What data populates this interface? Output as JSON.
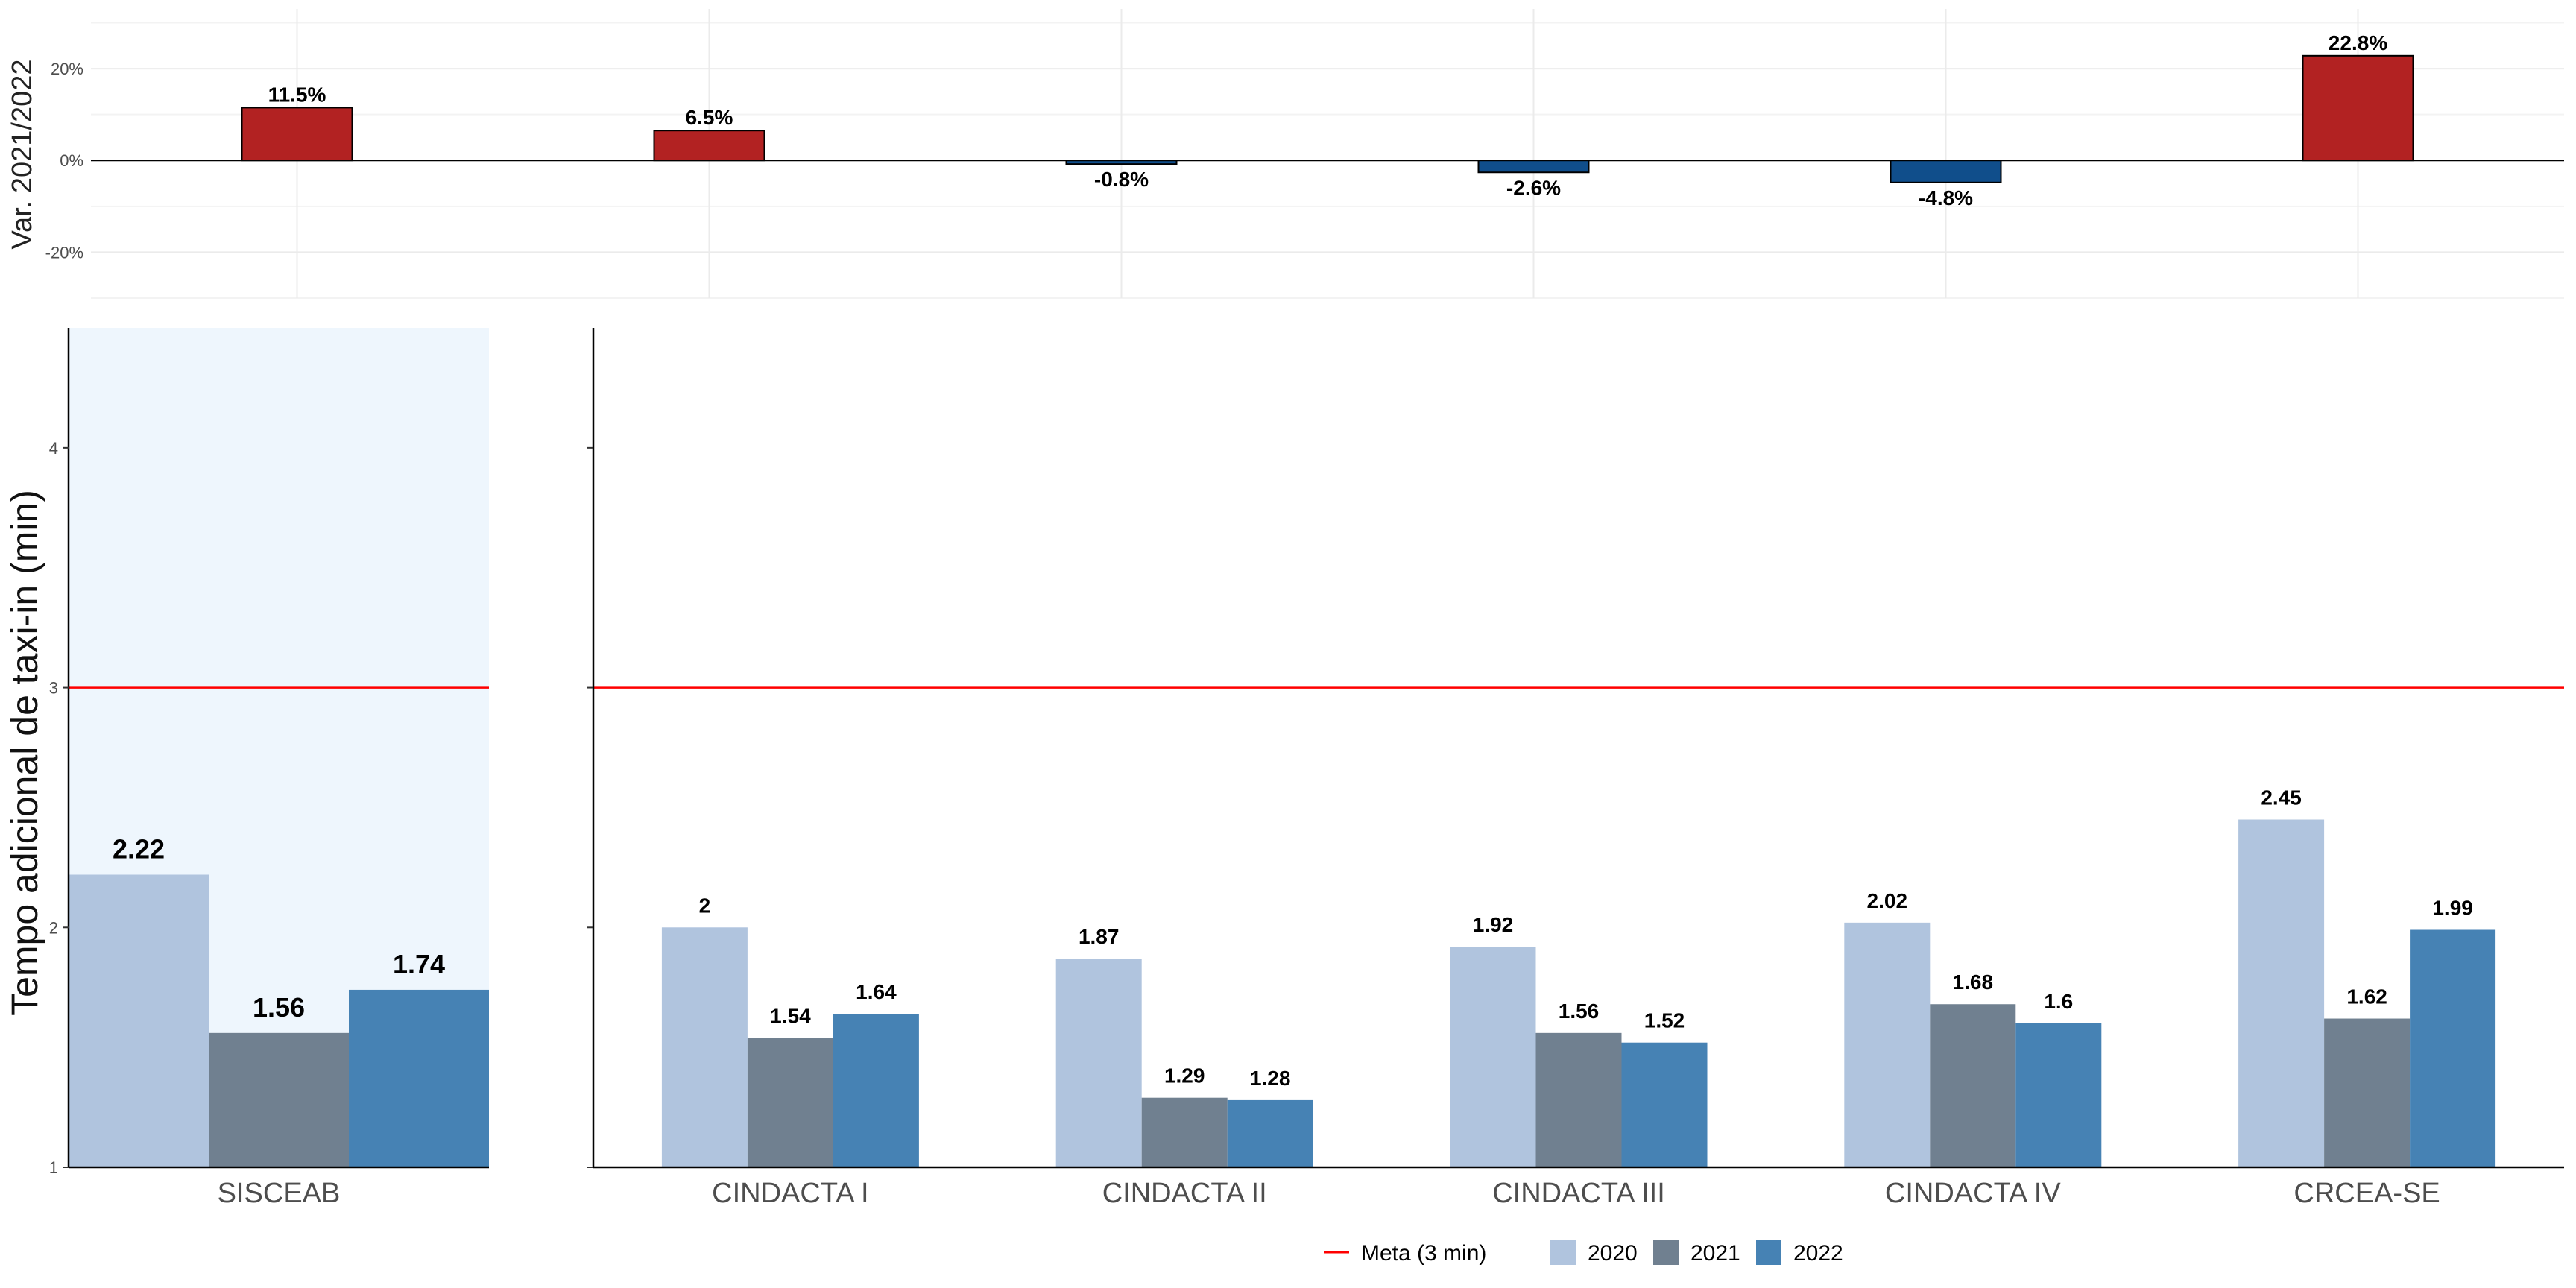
{
  "chart_data": [
    {
      "type": "bar",
      "ylabel": "Var. 2021/2022",
      "yticks": [
        20,
        0,
        -20
      ],
      "yticks_text": [
        "20%",
        "0%",
        "-20%"
      ],
      "ylim": [
        -30,
        33
      ],
      "categories": [
        "SISCEAB",
        "CINDACTA I",
        "CINDACTA II",
        "CINDACTA III",
        "CINDACTA IV",
        "CRCEA-SE"
      ],
      "values": [
        11.5,
        6.5,
        -0.8,
        -2.6,
        -4.8,
        22.8
      ],
      "labels": [
        "11.5%",
        "6.5%",
        "-0.8%",
        "-2.6%",
        "-4.8%",
        "22.8%"
      ],
      "colors": {
        "positive": "#B22222",
        "negative": "#104E8B"
      },
      "grid": true
    },
    {
      "type": "bar",
      "ylabel": "Tempo adicional de taxi-in (min)",
      "ylim": [
        1,
        4.5
      ],
      "yticks": [
        1,
        2,
        3,
        4
      ],
      "yticks_text": [
        "1",
        "2",
        "3",
        "4"
      ],
      "categories": [
        "SISCEAB",
        "CINDACTA I",
        "CINDACTA II",
        "CINDACTA III",
        "CINDACTA IV",
        "CRCEA-SE"
      ],
      "series": [
        {
          "name": "2020",
          "color": "#B0C4DE",
          "values": [
            2.22,
            2.0,
            1.87,
            1.92,
            2.02,
            2.45
          ],
          "labels": [
            "2.22",
            "2",
            "1.87",
            "1.92",
            "2.02",
            "2.45"
          ]
        },
        {
          "name": "2021",
          "color": "#708090",
          "values": [
            1.56,
            1.54,
            1.29,
            1.56,
            1.68,
            1.62
          ],
          "labels": [
            "1.56",
            "1.54",
            "1.29",
            "1.56",
            "1.68",
            "1.62"
          ]
        },
        {
          "name": "2022",
          "color": "#4682B4",
          "values": [
            1.74,
            1.64,
            1.28,
            1.52,
            1.6,
            1.99
          ],
          "labels": [
            "1.74",
            "1.64",
            "1.28",
            "1.52",
            "1.6",
            "1.99"
          ]
        }
      ],
      "target": {
        "label": "Meta (3 min)",
        "value": 3,
        "color": "#FF0000"
      },
      "highlight_panel": {
        "category": "SISCEAB",
        "background": "#EEF6FD"
      },
      "legend_position": "bottom",
      "grid": false
    }
  ]
}
